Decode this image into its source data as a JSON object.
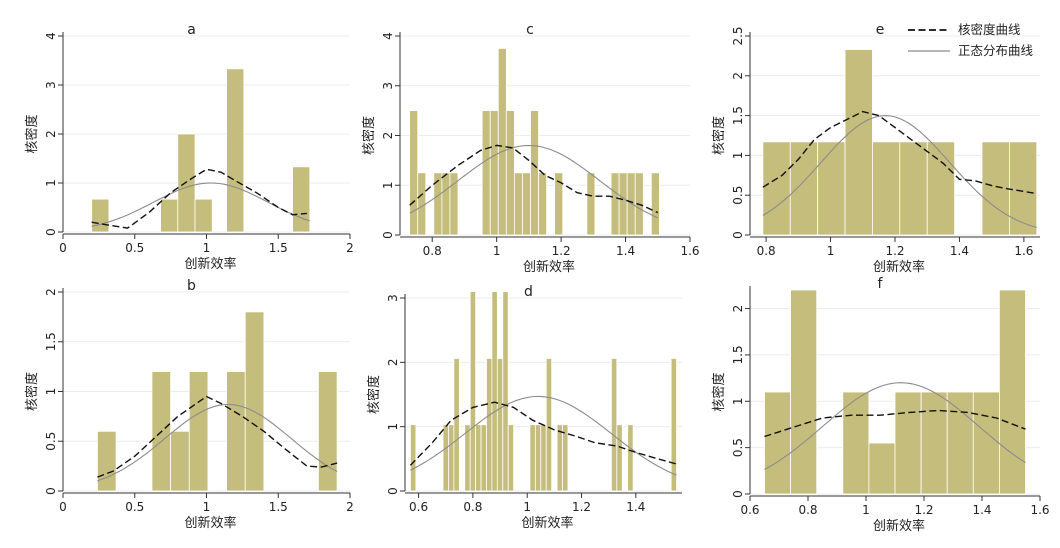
{
  "legend": {
    "kde_label": "核密度曲线",
    "normal_label": "正态分布曲线"
  },
  "colors": {
    "bar": "#c4bd7c",
    "kde": "#111111",
    "normal": "#8c8c8c"
  },
  "chart_data": [
    {
      "type": "bar",
      "title": "a",
      "xlabel": "创新效率",
      "ylabel": "核密度",
      "xlim": [
        0,
        2
      ],
      "ylim": [
        0,
        4
      ],
      "xticks": [
        0,
        0.5,
        1,
        1.5,
        2
      ],
      "xtick_labels": [
        "0",
        "0.5",
        "1",
        "1.5",
        "2"
      ],
      "yticks": [
        0,
        1,
        2,
        3,
        4
      ],
      "ytick_labels": [
        "0",
        "1",
        "2",
        "3",
        "4"
      ],
      "bins": [
        [
          0.2,
          0.32,
          0.67
        ],
        [
          0.68,
          0.8,
          0.67
        ],
        [
          0.8,
          0.92,
          2
        ],
        [
          0.92,
          1.04,
          0.67
        ],
        [
          1.14,
          1.26,
          3.33
        ],
        [
          1.6,
          1.72,
          1.33
        ]
      ],
      "kde": [
        [
          0.2,
          0.2
        ],
        [
          0.3,
          0.15
        ],
        [
          0.45,
          0.08
        ],
        [
          0.6,
          0.4
        ],
        [
          0.75,
          0.8
        ],
        [
          0.9,
          1.1
        ],
        [
          1.0,
          1.28
        ],
        [
          1.1,
          1.22
        ],
        [
          1.2,
          1.05
        ],
        [
          1.35,
          0.8
        ],
        [
          1.5,
          0.5
        ],
        [
          1.6,
          0.35
        ],
        [
          1.7,
          0.38
        ]
      ],
      "normal": {
        "mean": 1.03,
        "sd": 0.4,
        "peak": 1.0,
        "range": [
          0.2,
          1.72
        ]
      }
    },
    {
      "type": "bar",
      "title": "c",
      "xlabel": "创新效率",
      "ylabel": "核密度",
      "xlim": [
        0.7,
        1.6
      ],
      "ylim": [
        0,
        4
      ],
      "xticks": [
        0.8,
        1.0,
        1.2,
        1.4,
        1.6
      ],
      "xtick_labels": [
        "0.8",
        "1",
        "1.2",
        "1.4",
        "1.6"
      ],
      "yticks": [
        0,
        1,
        2,
        3,
        4
      ],
      "ytick_labels": [
        "0",
        "1",
        "2",
        "3",
        "4"
      ],
      "bins": [
        [
          0.73,
          0.755,
          2.5
        ],
        [
          0.755,
          0.78,
          1.25
        ],
        [
          0.805,
          0.83,
          1.25
        ],
        [
          0.83,
          0.855,
          1.25
        ],
        [
          0.855,
          0.88,
          1.25
        ],
        [
          0.955,
          0.98,
          2.5
        ],
        [
          0.98,
          1.005,
          2.5
        ],
        [
          1.005,
          1.03,
          3.75
        ],
        [
          1.03,
          1.055,
          2.5
        ],
        [
          1.055,
          1.08,
          1.25
        ],
        [
          1.08,
          1.105,
          1.25
        ],
        [
          1.105,
          1.13,
          2.5
        ],
        [
          1.13,
          1.155,
          1.25
        ],
        [
          1.18,
          1.205,
          1.25
        ],
        [
          1.28,
          1.305,
          1.25
        ],
        [
          1.355,
          1.38,
          1.25
        ],
        [
          1.38,
          1.405,
          1.25
        ],
        [
          1.405,
          1.43,
          1.25
        ],
        [
          1.43,
          1.455,
          1.25
        ],
        [
          1.48,
          1.505,
          1.25
        ]
      ],
      "kde": [
        [
          0.73,
          0.6
        ],
        [
          0.8,
          1.0
        ],
        [
          0.88,
          1.4
        ],
        [
          0.95,
          1.7
        ],
        [
          1.0,
          1.8
        ],
        [
          1.05,
          1.75
        ],
        [
          1.1,
          1.5
        ],
        [
          1.15,
          1.2
        ],
        [
          1.2,
          1.05
        ],
        [
          1.25,
          0.85
        ],
        [
          1.3,
          0.78
        ],
        [
          1.35,
          0.78
        ],
        [
          1.4,
          0.7
        ],
        [
          1.45,
          0.6
        ],
        [
          1.5,
          0.45
        ]
      ],
      "normal": {
        "mean": 1.1,
        "sd": 0.22,
        "peak": 1.8,
        "range": [
          0.73,
          1.5
        ]
      }
    },
    {
      "type": "bar",
      "title": "e",
      "xlabel": "创新效率",
      "ylabel": "核密度",
      "xlim": [
        0.75,
        1.65
      ],
      "ylim": [
        0,
        2.5
      ],
      "xticks": [
        0.8,
        1.0,
        1.2,
        1.4,
        1.6
      ],
      "xtick_labels": [
        "0.8",
        "1",
        "1.2",
        "1.4",
        "1.6"
      ],
      "yticks": [
        0,
        0.5,
        1,
        1.5,
        2,
        2.5
      ],
      "ytick_labels": [
        "0",
        "0.5",
        "1",
        "1.5",
        "2",
        "2.5"
      ],
      "bins": [
        [
          0.79,
          0.875,
          1.17
        ],
        [
          0.875,
          0.96,
          1.17
        ],
        [
          0.96,
          1.045,
          1.17
        ],
        [
          1.045,
          1.13,
          2.33
        ],
        [
          1.13,
          1.215,
          1.17
        ],
        [
          1.215,
          1.3,
          1.17
        ],
        [
          1.3,
          1.385,
          1.17
        ],
        [
          1.47,
          1.555,
          1.17
        ],
        [
          1.555,
          1.64,
          1.17
        ]
      ],
      "kde": [
        [
          0.79,
          0.6
        ],
        [
          0.85,
          0.75
        ],
        [
          0.9,
          0.95
        ],
        [
          0.95,
          1.2
        ],
        [
          1.0,
          1.35
        ],
        [
          1.05,
          1.45
        ],
        [
          1.1,
          1.55
        ],
        [
          1.15,
          1.5
        ],
        [
          1.2,
          1.35
        ],
        [
          1.25,
          1.2
        ],
        [
          1.3,
          1.05
        ],
        [
          1.35,
          0.9
        ],
        [
          1.4,
          0.7
        ],
        [
          1.45,
          0.68
        ],
        [
          1.5,
          0.62
        ],
        [
          1.55,
          0.58
        ],
        [
          1.64,
          0.52
        ]
      ],
      "normal": {
        "mean": 1.17,
        "sd": 0.2,
        "peak": 1.5,
        "range": [
          0.79,
          1.64
        ]
      }
    },
    {
      "type": "bar",
      "title": "b",
      "xlabel": "创新效率",
      "ylabel": "核密度",
      "xlim": [
        0,
        2
      ],
      "ylim": [
        0,
        2
      ],
      "xticks": [
        0,
        0.5,
        1,
        1.5,
        2
      ],
      "xtick_labels": [
        "0",
        "0.5",
        "1",
        "1.5",
        "2"
      ],
      "yticks": [
        0,
        0.5,
        1,
        1.5,
        2
      ],
      "ytick_labels": [
        "0",
        "0.5",
        "1",
        "1.5",
        "2"
      ],
      "bins": [
        [
          0.24,
          0.37,
          0.6
        ],
        [
          0.62,
          0.75,
          1.2
        ],
        [
          0.75,
          0.88,
          0.6
        ],
        [
          0.88,
          1.01,
          1.2
        ],
        [
          1.14,
          1.27,
          1.2
        ],
        [
          1.27,
          1.4,
          1.8
        ],
        [
          1.78,
          1.91,
          1.2
        ]
      ],
      "kde": [
        [
          0.24,
          0.14
        ],
        [
          0.35,
          0.2
        ],
        [
          0.5,
          0.35
        ],
        [
          0.65,
          0.55
        ],
        [
          0.8,
          0.75
        ],
        [
          0.9,
          0.85
        ],
        [
          1.0,
          0.95
        ],
        [
          1.1,
          0.88
        ],
        [
          1.25,
          0.75
        ],
        [
          1.4,
          0.6
        ],
        [
          1.55,
          0.42
        ],
        [
          1.7,
          0.25
        ],
        [
          1.8,
          0.24
        ],
        [
          1.91,
          0.28
        ]
      ],
      "normal": {
        "mean": 1.15,
        "sd": 0.44,
        "peak": 0.87,
        "range": [
          0.24,
          1.91
        ]
      }
    },
    {
      "type": "bar",
      "title": "d",
      "xlabel": "创新效率",
      "ylabel": "核密度",
      "xlim": [
        0.55,
        1.57
      ],
      "ylim": [
        0,
        3
      ],
      "xticks": [
        0.6,
        0.8,
        1.0,
        1.2,
        1.4
      ],
      "xtick_labels": [
        "0.6",
        "0.8",
        "1",
        "1.2",
        "1.4"
      ],
      "yticks": [
        0,
        1,
        2,
        3
      ],
      "ytick_labels": [
        "0",
        "1",
        "2",
        "3"
      ],
      "bins": [
        [
          0.57,
          0.59,
          1.03
        ],
        [
          0.69,
          0.71,
          1.03
        ],
        [
          0.71,
          0.73,
          1.03
        ],
        [
          0.73,
          0.75,
          2.06
        ],
        [
          0.77,
          0.79,
          1.03
        ],
        [
          0.79,
          0.81,
          3.1
        ],
        [
          0.81,
          0.83,
          1.03
        ],
        [
          0.83,
          0.85,
          1.03
        ],
        [
          0.85,
          0.87,
          2.06
        ],
        [
          0.87,
          0.89,
          3.1
        ],
        [
          0.89,
          0.91,
          2.06
        ],
        [
          0.91,
          0.93,
          3.1
        ],
        [
          0.93,
          0.95,
          1.03
        ],
        [
          1.01,
          1.03,
          1.03
        ],
        [
          1.03,
          1.05,
          1.03
        ],
        [
          1.05,
          1.07,
          1.03
        ],
        [
          1.07,
          1.09,
          2.06
        ],
        [
          1.11,
          1.13,
          1.03
        ],
        [
          1.13,
          1.15,
          1.03
        ],
        [
          1.31,
          1.33,
          2.06
        ],
        [
          1.33,
          1.35,
          1.03
        ],
        [
          1.37,
          1.39,
          1.03
        ],
        [
          1.53,
          1.55,
          2.06
        ]
      ],
      "kde": [
        [
          0.57,
          0.4
        ],
        [
          0.65,
          0.75
        ],
        [
          0.72,
          1.1
        ],
        [
          0.8,
          1.3
        ],
        [
          0.88,
          1.38
        ],
        [
          0.95,
          1.3
        ],
        [
          1.02,
          1.1
        ],
        [
          1.1,
          0.95
        ],
        [
          1.18,
          0.85
        ],
        [
          1.25,
          0.75
        ],
        [
          1.33,
          0.7
        ],
        [
          1.4,
          0.6
        ],
        [
          1.48,
          0.5
        ],
        [
          1.55,
          0.42
        ]
      ],
      "normal": {
        "mean": 1.04,
        "sd": 0.27,
        "peak": 1.47,
        "range": [
          0.57,
          1.55
        ]
      }
    },
    {
      "type": "bar",
      "title": "f",
      "xlabel": "创新效率",
      "ylabel": "核密度",
      "xlim": [
        0.6,
        1.6
      ],
      "ylim": [
        0,
        2.2
      ],
      "xticks": [
        0.6,
        0.8,
        1.0,
        1.2,
        1.4,
        1.6
      ],
      "xtick_labels": [
        "0.6",
        "0.8",
        "1",
        "1.2",
        "1.4",
        "1.6"
      ],
      "yticks": [
        0,
        0.5,
        1,
        1.5,
        2
      ],
      "ytick_labels": [
        "0",
        "0.5",
        "1",
        "1.5",
        "2"
      ],
      "bins": [
        [
          0.65,
          0.74,
          1.1
        ],
        [
          0.74,
          0.83,
          2.2
        ],
        [
          0.92,
          1.01,
          1.1
        ],
        [
          1.01,
          1.1,
          0.55
        ],
        [
          1.1,
          1.19,
          1.1
        ],
        [
          1.19,
          1.28,
          1.1
        ],
        [
          1.28,
          1.37,
          1.1
        ],
        [
          1.37,
          1.46,
          1.1
        ],
        [
          1.46,
          1.55,
          2.2
        ]
      ],
      "kde": [
        [
          0.65,
          0.62
        ],
        [
          0.75,
          0.72
        ],
        [
          0.85,
          0.82
        ],
        [
          0.95,
          0.85
        ],
        [
          1.05,
          0.85
        ],
        [
          1.15,
          0.88
        ],
        [
          1.25,
          0.9
        ],
        [
          1.35,
          0.88
        ],
        [
          1.45,
          0.82
        ],
        [
          1.55,
          0.7
        ]
      ],
      "normal": {
        "mean": 1.12,
        "sd": 0.27,
        "peak": 1.2,
        "range": [
          0.65,
          1.55
        ]
      }
    }
  ]
}
